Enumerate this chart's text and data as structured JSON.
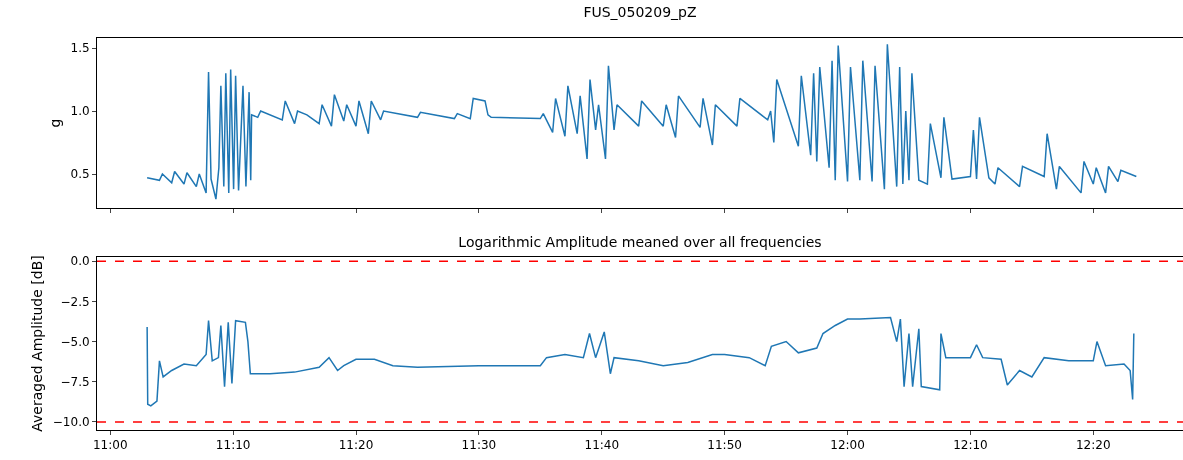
{
  "chart_data": [
    {
      "type": "line",
      "title": "FUS_050209_pZ",
      "ylabel": "g",
      "xlim": [
        10.982,
        12.455
      ],
      "ylim": [
        0.23,
        1.58
      ],
      "yticks": [
        {
          "value": 0.5,
          "label": "0.5"
        },
        {
          "value": 1.0,
          "label": "1.0"
        },
        {
          "value": 1.5,
          "label": "1.5"
        }
      ],
      "xticks": [
        {
          "value": 11,
          "label": null
        },
        {
          "value": 11.1667,
          "label": null
        },
        {
          "value": 11.3333,
          "label": null
        },
        {
          "value": 11.5,
          "label": null
        },
        {
          "value": 11.6667,
          "label": null
        },
        {
          "value": 11.8333,
          "label": null
        },
        {
          "value": 12,
          "label": null
        },
        {
          "value": 12.1667,
          "label": null
        },
        {
          "value": 12.3333,
          "label": null
        }
      ],
      "tick_labels": "y",
      "line_style": "solid",
      "marker": "none",
      "series": [
        {
          "color": "#1f77b4",
          "x": [
            11.05,
            11.0667,
            11.0707,
            11.0833,
            11.0873,
            11.1,
            11.104,
            11.1167,
            11.1207,
            11.13,
            11.1333,
            11.1367,
            11.1433,
            11.1473,
            11.15,
            11.154,
            11.1567,
            11.1607,
            11.1633,
            11.1673,
            11.17,
            11.174,
            11.18,
            11.184,
            11.1883,
            11.1905,
            11.1917,
            11.2,
            11.204,
            11.2333,
            11.2373,
            11.25,
            11.254,
            11.2667,
            11.2833,
            11.2873,
            11.3,
            11.304,
            11.3167,
            11.3207,
            11.3333,
            11.3373,
            11.35,
            11.354,
            11.3667,
            11.3707,
            11.4167,
            11.4207,
            11.4667,
            11.4707,
            11.4883,
            11.4923,
            11.5083,
            11.5123,
            11.5167,
            11.5833,
            11.5873,
            11.6,
            11.604,
            11.6167,
            11.6207,
            11.6333,
            11.6373,
            11.6467,
            11.6507,
            11.6583,
            11.6623,
            11.6717,
            11.6757,
            11.6833,
            11.6873,
            11.7167,
            11.7207,
            11.75,
            11.754,
            11.7667,
            11.7707,
            11.8,
            11.804,
            11.8167,
            11.8207,
            11.85,
            11.854,
            11.8917,
            11.8957,
            11.9,
            11.904,
            11.9333,
            11.9373,
            11.95,
            11.954,
            11.9583,
            11.9623,
            11.975,
            11.979,
            11.9833,
            11.9873,
            12.0,
            12.004,
            12.0167,
            12.0207,
            12.0333,
            12.0373,
            12.05,
            12.054,
            12.0667,
            12.0707,
            12.075,
            12.079,
            12.0833,
            12.0873,
            12.0967,
            12.1083,
            12.1123,
            12.1267,
            12.1307,
            12.1417,
            12.1667,
            12.1707,
            12.175,
            12.179,
            12.1917,
            12.2,
            12.204,
            12.2333,
            12.2373,
            12.2667,
            12.2707,
            12.2833,
            12.2873,
            12.3167,
            12.3207,
            12.3333,
            12.3373,
            12.35,
            12.354,
            12.3667,
            12.3707,
            12.3917
          ],
          "values": [
            0.47,
            0.45,
            0.5,
            0.43,
            0.52,
            0.42,
            0.51,
            0.4,
            0.5,
            0.35,
            1.31,
            0.46,
            0.3,
            0.55,
            1.2,
            0.4,
            1.3,
            0.35,
            1.33,
            0.38,
            1.28,
            0.37,
            1.2,
            0.4,
            1.15,
            0.45,
            0.97,
            0.95,
            1.0,
            0.93,
            1.08,
            0.9,
            1.0,
            0.97,
            0.9,
            1.05,
            0.88,
            1.13,
            0.92,
            1.05,
            0.88,
            1.08,
            0.82,
            1.08,
            0.93,
            1.0,
            0.95,
            0.99,
            0.94,
            0.98,
            0.94,
            1.1,
            1.08,
            0.97,
            0.95,
            0.94,
            0.98,
            0.83,
            1.1,
            0.8,
            1.2,
            0.82,
            1.12,
            0.62,
            1.25,
            0.85,
            1.05,
            0.62,
            1.36,
            0.85,
            1.05,
            0.88,
            1.08,
            0.88,
            1.05,
            0.79,
            1.12,
            0.87,
            1.1,
            0.73,
            1.05,
            0.88,
            1.1,
            0.93,
            1.0,
            0.75,
            1.25,
            0.72,
            1.28,
            0.65,
            1.3,
            0.6,
            1.35,
            0.55,
            1.4,
            0.45,
            1.52,
            0.44,
            1.35,
            0.45,
            1.4,
            0.44,
            1.36,
            0.38,
            1.53,
            0.4,
            1.35,
            0.42,
            1.0,
            0.45,
            1.3,
            0.45,
            0.42,
            0.9,
            0.47,
            0.95,
            0.46,
            0.48,
            0.85,
            0.46,
            0.95,
            0.47,
            0.42,
            0.55,
            0.4,
            0.56,
            0.48,
            0.82,
            0.38,
            0.56,
            0.35,
            0.6,
            0.42,
            0.55,
            0.35,
            0.56,
            0.44,
            0.53,
            0.48
          ]
        }
      ]
    },
    {
      "type": "line",
      "title": "Logarithmic Amplitude meaned over all frequencies",
      "ylabel": "Averaged Amplitude [dB]",
      "xlim": [
        10.982,
        12.455
      ],
      "ylim": [
        -10.5,
        0.26
      ],
      "yticks": [
        {
          "value": 0,
          "label": "0.0"
        },
        {
          "value": -2.5,
          "label": "−2.5"
        },
        {
          "value": -5,
          "label": "−5.0"
        },
        {
          "value": -7.5,
          "label": "−7.5"
        },
        {
          "value": -10,
          "label": "−10.0"
        }
      ],
      "xticks": [
        {
          "value": 11,
          "label": "11:00"
        },
        {
          "value": 11.1667,
          "label": "11:10"
        },
        {
          "value": 11.3333,
          "label": "11:20"
        },
        {
          "value": 11.5,
          "label": "11:30"
        },
        {
          "value": 11.6667,
          "label": "11:40"
        },
        {
          "value": 11.8333,
          "label": "11:50"
        },
        {
          "value": 12,
          "label": "12:00"
        },
        {
          "value": 12.1667,
          "label": "12:10"
        },
        {
          "value": 12.3333,
          "label": "12:20"
        }
      ],
      "line_style": "solid",
      "marker": "none",
      "ref_lines": [
        {
          "axis": "y",
          "value": 0,
          "color": "#ff0000",
          "line_style": "dashed"
        },
        {
          "axis": "y",
          "value": -10,
          "color": "#ff0000",
          "line_style": "dashed"
        }
      ],
      "series": [
        {
          "color": "#1f77b4",
          "x": [
            11.05,
            11.0508,
            11.055,
            11.0633,
            11.0667,
            11.0717,
            11.0833,
            11.1,
            11.1167,
            11.13,
            11.1333,
            11.1383,
            11.1467,
            11.15,
            11.155,
            11.16,
            11.165,
            11.17,
            11.1833,
            11.1867,
            11.19,
            11.2167,
            11.25,
            11.2833,
            11.2967,
            11.3083,
            11.3167,
            11.3333,
            11.3583,
            11.3833,
            11.4167,
            11.5,
            11.5833,
            11.5917,
            11.6167,
            11.6417,
            11.65,
            11.6583,
            11.67,
            11.6783,
            11.6833,
            11.7167,
            11.75,
            11.7833,
            11.8167,
            11.8333,
            11.8667,
            11.8883,
            11.8967,
            11.9167,
            11.9333,
            11.9583,
            11.9667,
            11.9833,
            12.0,
            12.0167,
            12.0583,
            12.0667,
            12.0717,
            12.0767,
            12.0833,
            12.0883,
            12.0967,
            12.1,
            12.125,
            12.1267,
            12.1333,
            12.1667,
            12.175,
            12.1833,
            12.2083,
            12.2167,
            12.2333,
            12.25,
            12.2667,
            12.3,
            12.3333,
            12.3383,
            12.35,
            12.375,
            12.3833,
            12.3867,
            12.3883
          ],
          "values": [
            -4.1,
            -8.9,
            -9.0,
            -8.7,
            -6.2,
            -7.2,
            -6.8,
            -6.4,
            -6.5,
            -5.8,
            -3.7,
            -6.2,
            -6.0,
            -4.0,
            -7.8,
            -3.8,
            -7.6,
            -3.7,
            -3.8,
            -5.0,
            -7.0,
            -7.0,
            -6.9,
            -6.6,
            -6.0,
            -6.8,
            -6.5,
            -6.1,
            -6.1,
            -6.5,
            -6.6,
            -6.5,
            -6.5,
            -6.0,
            -5.8,
            -6.0,
            -4.5,
            -6.0,
            -4.4,
            -7.0,
            -6.0,
            -6.2,
            -6.5,
            -6.3,
            -5.8,
            -5.8,
            -6.0,
            -6.5,
            -5.3,
            -5.0,
            -5.7,
            -5.4,
            -4.5,
            -4.0,
            -3.6,
            -3.6,
            -3.5,
            -5.0,
            -3.6,
            -7.8,
            -4.5,
            -7.8,
            -4.2,
            -7.8,
            -8.0,
            -4.5,
            -6.0,
            -6.0,
            -5.2,
            -6.0,
            -6.1,
            -7.7,
            -6.8,
            -7.2,
            -6.0,
            -6.2,
            -6.2,
            -5.0,
            -6.5,
            -6.4,
            -6.8,
            -8.6,
            -4.5
          ]
        }
      ]
    }
  ]
}
